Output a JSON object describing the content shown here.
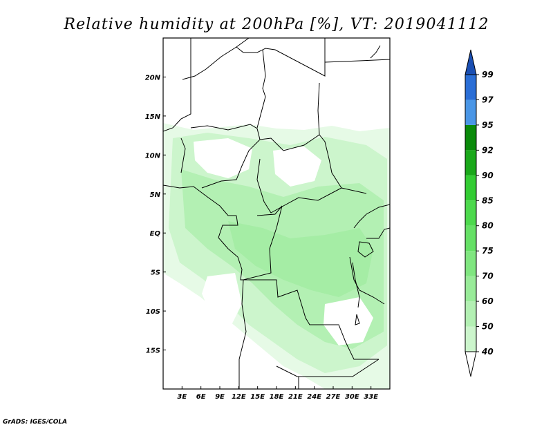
{
  "title": "Relative humidity at 200hPa [%], VT: 2019041112",
  "credit": "GrADS: IGES/COLA",
  "map": {
    "lon_range": [
      0,
      36
    ],
    "lat_range": [
      -20,
      25
    ],
    "x_ticks": [
      "3E",
      "6E",
      "9E",
      "12E",
      "15E",
      "18E",
      "21E",
      "24E",
      "27E",
      "30E",
      "33E"
    ],
    "y_ticks": [
      "20N",
      "15N",
      "10N",
      "5N",
      "EQ",
      "5S",
      "10S",
      "15S"
    ]
  },
  "colorbar": {
    "levels": [
      "40",
      "50",
      "60",
      "70",
      "75",
      "80",
      "85",
      "90",
      "92",
      "95",
      "97",
      "99"
    ],
    "colors": [
      "#e6fae6",
      "#ccf5cc",
      "#b3f0b3",
      "#99eb99",
      "#80e680",
      "#66e066",
      "#4dd94d",
      "#33cc33",
      "#1aa81a",
      "#0a8a0a",
      "#4a96e6",
      "#2a6ed6",
      "#1a4fb3"
    ]
  },
  "chart_data": {
    "type": "heatmap",
    "variable": "Relative humidity",
    "units": "%",
    "level": "200hPa",
    "valid_time": "2019041112",
    "domain": {
      "lon": [
        0,
        36
      ],
      "lat": [
        -20,
        25
      ]
    },
    "scale_levels": [
      40,
      50,
      60,
      70,
      75,
      80,
      85,
      90,
      92,
      95,
      97,
      99
    ],
    "approx_coverage": "Humidity mostly 40-60% across Gulf of Guinea, Congo Basin and East Africa between ~15N and ~17S; drier (<40%) over Sahara north of ~13N and patches over Atlantic and southern Africa."
  }
}
